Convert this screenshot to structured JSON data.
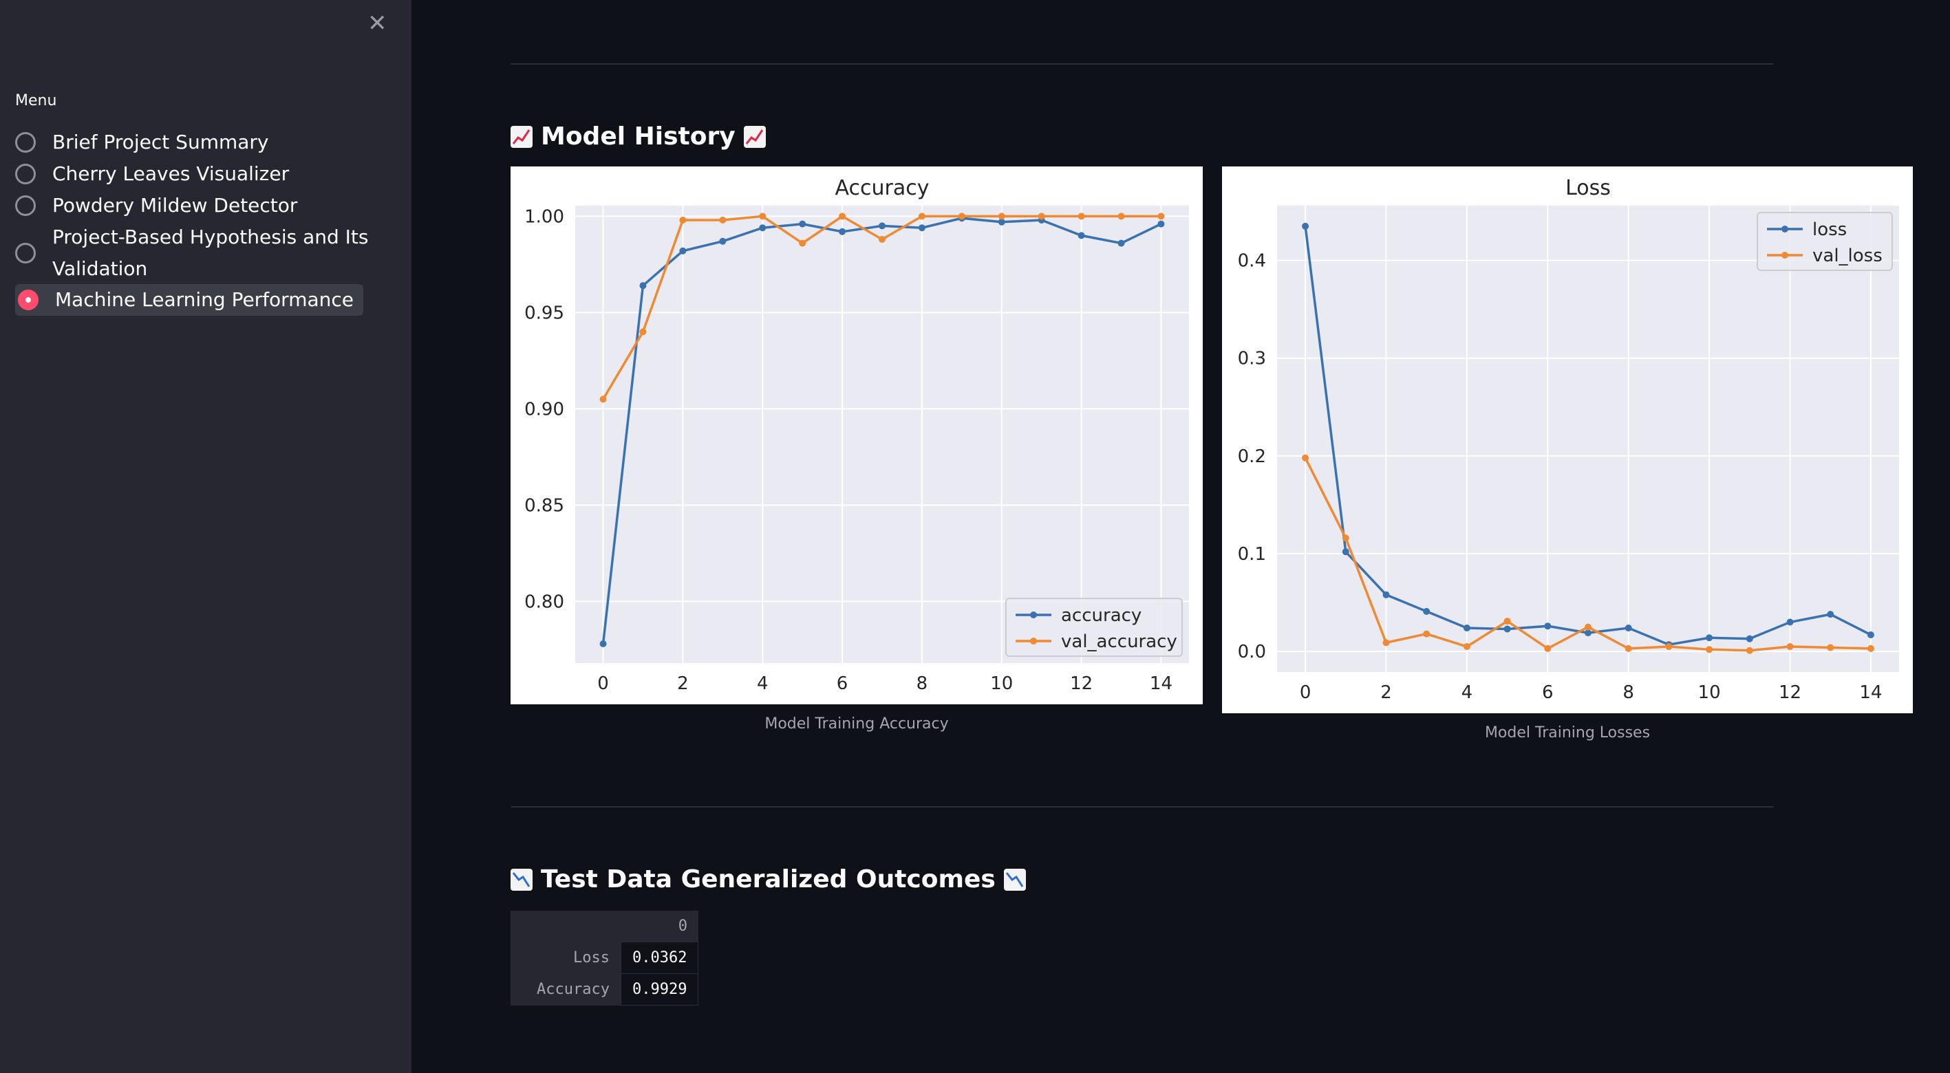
{
  "sidebar": {
    "close_icon": "close-icon",
    "menu_label": "Menu",
    "items": [
      {
        "label": "Brief Project Summary",
        "selected": false
      },
      {
        "label": "Cherry Leaves Visualizer",
        "selected": false
      },
      {
        "label": "Powdery Mildew Detector",
        "selected": false
      },
      {
        "label_line1": "Project-Based Hypothesis and Its",
        "label_line2": "Validation",
        "selected": false
      },
      {
        "label": "Machine Learning Performance",
        "selected": true
      }
    ]
  },
  "main": {
    "model_history": {
      "heading": "Model History",
      "icon": "chart-increasing-emoji"
    },
    "outcomes": {
      "heading": "Test Data Generalized Outcomes",
      "icon": "chart-decreasing-emoji"
    },
    "accuracy_caption": "Model Training Accuracy",
    "loss_caption": "Model Training Losses",
    "table": {
      "column_header": "0",
      "rows": [
        {
          "label": "Loss",
          "value": "0.0362"
        },
        {
          "label": "Accuracy",
          "value": "0.9929"
        }
      ]
    }
  },
  "colors": {
    "accent": "#ff4b6e",
    "series_blue": "#3a72b0",
    "series_orange": "#f08a32",
    "plot_bg": "#eaeaf2"
  },
  "chart_data": [
    {
      "type": "line",
      "title": "Accuracy",
      "xlabel": "",
      "ylabel": "",
      "x": [
        0,
        1,
        2,
        3,
        4,
        5,
        6,
        7,
        8,
        9,
        10,
        11,
        12,
        13,
        14
      ],
      "xticks": [
        "0",
        "2",
        "4",
        "6",
        "8",
        "10",
        "12",
        "14"
      ],
      "yticks": [
        "0.80",
        "0.85",
        "0.90",
        "0.95",
        "1.00"
      ],
      "xlim": [
        -0.7,
        14.7
      ],
      "ylim": [
        0.768,
        1.0055
      ],
      "grid": true,
      "legend": "lower-right",
      "series": [
        {
          "name": "accuracy",
          "color": "#3a72b0",
          "values": [
            0.778,
            0.964,
            0.982,
            0.987,
            0.994,
            0.996,
            0.992,
            0.995,
            0.994,
            0.999,
            0.997,
            0.998,
            0.99,
            0.986,
            0.996
          ]
        },
        {
          "name": "val_accuracy",
          "color": "#f08a32",
          "values": [
            0.905,
            0.94,
            0.998,
            0.998,
            1.0,
            0.986,
            1.0,
            0.988,
            1.0,
            1.0,
            1.0,
            1.0,
            1.0,
            1.0,
            1.0
          ]
        }
      ]
    },
    {
      "type": "line",
      "title": "Loss",
      "xlabel": "",
      "ylabel": "",
      "x": [
        0,
        1,
        2,
        3,
        4,
        5,
        6,
        7,
        8,
        9,
        10,
        11,
        12,
        13,
        14
      ],
      "xticks": [
        "0",
        "2",
        "4",
        "6",
        "8",
        "10",
        "12",
        "14"
      ],
      "yticks": [
        "0.0",
        "0.1",
        "0.2",
        "0.3",
        "0.4"
      ],
      "xlim": [
        -0.7,
        14.7
      ],
      "ylim": [
        -0.021,
        0.456
      ],
      "grid": true,
      "legend": "top-right",
      "series": [
        {
          "name": "loss",
          "color": "#3a72b0",
          "values": [
            0.435,
            0.102,
            0.058,
            0.041,
            0.024,
            0.023,
            0.026,
            0.019,
            0.024,
            0.007,
            0.014,
            0.013,
            0.03,
            0.038,
            0.017
          ]
        },
        {
          "name": "val_loss",
          "color": "#f08a32",
          "values": [
            0.198,
            0.116,
            0.009,
            0.018,
            0.005,
            0.031,
            0.003,
            0.025,
            0.003,
            0.005,
            0.002,
            0.001,
            0.005,
            0.004,
            0.003
          ]
        }
      ]
    }
  ]
}
